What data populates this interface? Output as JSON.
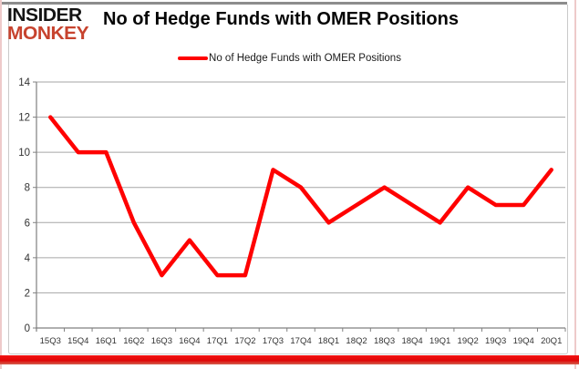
{
  "logo": {
    "line1": "INSIDER",
    "line2": "MONKEY"
  },
  "header": {
    "title": "No of Hedge Funds with OMER Positions"
  },
  "legend": {
    "label": "No of Hedge Funds with OMER Positions",
    "swatch_color": "#ff0000"
  },
  "colors": {
    "series_line": "#ff0000",
    "gridline": "#a6a6a6",
    "axis": "#808080",
    "tick_label": "#333333",
    "accent_red": "#e00505",
    "logo_red": "#c7432e"
  },
  "chart_data": {
    "type": "line",
    "title": "No of Hedge Funds with OMER Positions",
    "categories": [
      "15Q3",
      "15Q4",
      "16Q1",
      "16Q2",
      "16Q3",
      "16Q4",
      "17Q1",
      "17Q2",
      "17Q3",
      "17Q4",
      "18Q1",
      "18Q2",
      "18Q3",
      "18Q4",
      "19Q1",
      "19Q2",
      "19Q3",
      "19Q4",
      "20Q1"
    ],
    "series": [
      {
        "name": "No of Hedge Funds with OMER Positions",
        "color": "#ff0000",
        "values": [
          12,
          10,
          10,
          6,
          3,
          5,
          3,
          3,
          9,
          8,
          6,
          7,
          8,
          7,
          6,
          8,
          7,
          7,
          9
        ]
      }
    ],
    "xlabel": "",
    "ylabel": "",
    "ylim": [
      0,
      14
    ],
    "ytick_step": 2,
    "yticks": [
      0,
      2,
      4,
      6,
      8,
      10,
      12,
      14
    ],
    "grid": true,
    "legend_position": "top"
  }
}
